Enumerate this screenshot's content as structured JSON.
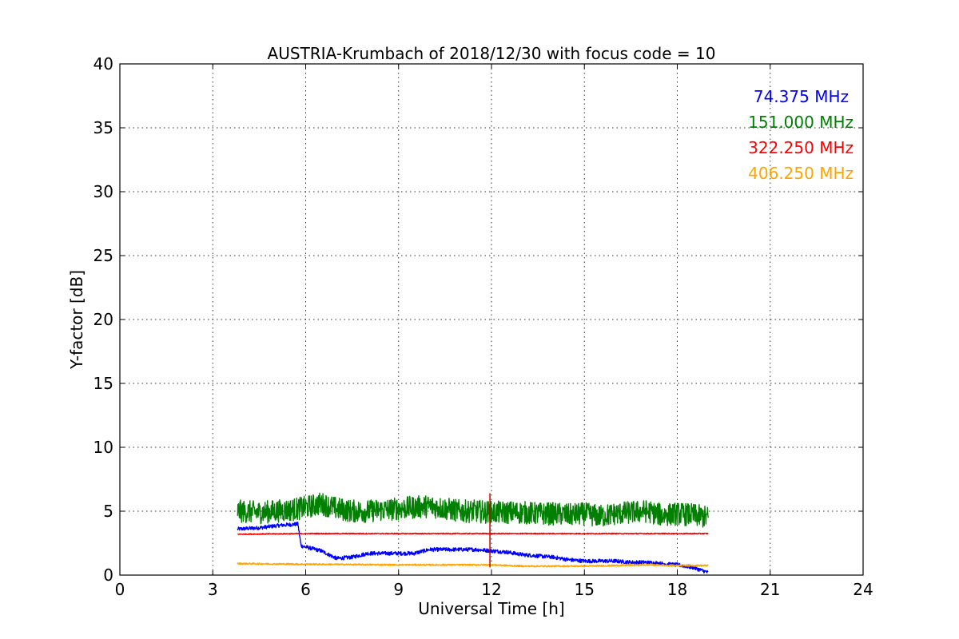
{
  "chart_data": {
    "type": "line",
    "title": "AUSTRIA-Krumbach of 2018/12/30 with focus code = 10",
    "xlabel": "Universal Time [h]",
    "ylabel": "Y-factor [dB]",
    "xlim": [
      0,
      24
    ],
    "ylim": [
      0,
      40
    ],
    "xticks": [
      0,
      3,
      6,
      9,
      12,
      15,
      18,
      21,
      24
    ],
    "yticks": [
      0,
      5,
      10,
      15,
      20,
      25,
      30,
      35,
      40
    ],
    "grid": true,
    "legend_position": "top-right",
    "series": [
      {
        "name": "74.375 MHz",
        "color": "#0000ff",
        "noise": 0.15,
        "x": [
          3.8,
          4.5,
          5.2,
          5.75,
          5.85,
          6.0,
          6.5,
          7.0,
          7.5,
          8.0,
          8.5,
          9.0,
          9.5,
          10.0,
          10.5,
          11.0,
          11.5,
          12.0,
          12.5,
          13.0,
          13.5,
          14.0,
          14.5,
          15.0,
          15.5,
          16.0,
          16.5,
          17.0,
          17.5,
          18.0,
          18.5,
          19.0
        ],
        "y": [
          3.6,
          3.7,
          3.9,
          4.0,
          2.3,
          2.2,
          1.9,
          1.3,
          1.4,
          1.7,
          1.7,
          1.7,
          1.7,
          2.0,
          2.0,
          2.0,
          2.0,
          1.9,
          1.8,
          1.6,
          1.5,
          1.4,
          1.2,
          1.1,
          1.1,
          1.1,
          1.0,
          1.0,
          0.9,
          0.8,
          0.6,
          0.2
        ]
      },
      {
        "name": "151.000 MHz",
        "color": "#008000",
        "noise": 0.9,
        "x": [
          3.8,
          4.5,
          5.0,
          5.5,
          6.0,
          6.5,
          7.0,
          7.5,
          8.0,
          8.5,
          9.0,
          9.5,
          10.0,
          10.5,
          11.0,
          11.5,
          12.0,
          12.5,
          13.0,
          13.5,
          14.0,
          14.5,
          15.0,
          15.5,
          16.0,
          16.5,
          17.0,
          17.5,
          18.0,
          18.5,
          19.0
        ],
        "y": [
          5.0,
          4.9,
          5.0,
          5.1,
          5.3,
          5.6,
          5.2,
          5.0,
          5.0,
          5.1,
          5.2,
          5.3,
          5.4,
          5.2,
          5.0,
          5.0,
          4.9,
          4.9,
          4.9,
          4.8,
          4.8,
          4.7,
          4.8,
          4.6,
          4.8,
          4.9,
          5.0,
          4.7,
          4.8,
          4.7,
          4.5
        ]
      },
      {
        "name": "322.250 MHz",
        "color": "#ff0000",
        "noise": 0.04,
        "x": [
          3.8,
          6.0,
          9.0,
          11.9,
          12.0,
          12.05,
          15.0,
          18.0,
          19.0
        ],
        "y": [
          3.2,
          3.25,
          3.25,
          3.25,
          3.25,
          3.25,
          3.25,
          3.25,
          3.25
        ]
      },
      {
        "name": "406.250 MHz",
        "color": "#ffa500",
        "noise": 0.06,
        "x": [
          3.8,
          6.0,
          9.0,
          12.0,
          13.0,
          15.0,
          17.0,
          18.0,
          19.0
        ],
        "y": [
          0.9,
          0.85,
          0.8,
          0.8,
          0.7,
          0.7,
          0.8,
          0.75,
          0.75
        ]
      }
    ],
    "spike": {
      "x": 11.95,
      "y_low": 0.6,
      "y_high": 6.4,
      "color": "#cc0000"
    }
  }
}
